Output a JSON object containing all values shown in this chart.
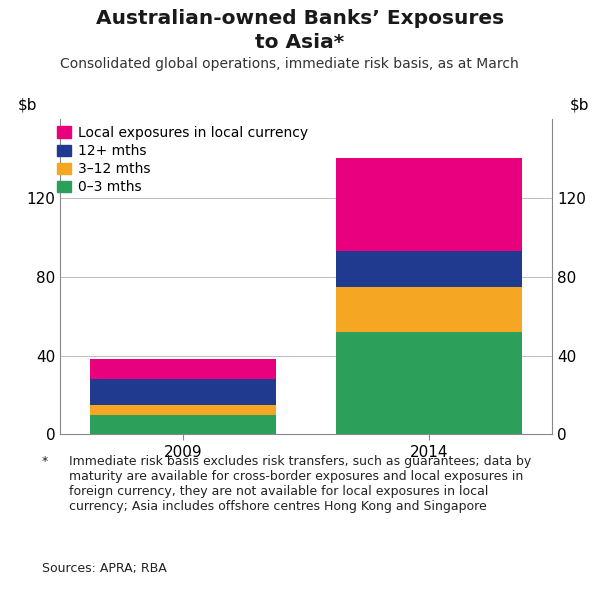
{
  "title_line1": "Australian-owned Banks’ Exposures",
  "title_line2": "to Asia*",
  "subtitle": "Consolidated global operations, immediate risk basis, as at March",
  "categories": [
    "2009",
    "2014"
  ],
  "series": {
    "0-3 mths": [
      10,
      52
    ],
    "3-12 mths": [
      5,
      23
    ],
    "12+ mths": [
      13,
      18
    ],
    "Local exposures in local currency": [
      10,
      47
    ]
  },
  "colors": {
    "0-3 mths": "#2ca05a",
    "3-12 mths": "#f5a623",
    "12+ mths": "#1f3a8f",
    "Local exposures in local currency": "#e8007f"
  },
  "legend_order": [
    "Local exposures in local currency",
    "12+ mths",
    "3-12 mths",
    "0-3 mths"
  ],
  "legend_labels": [
    "Local exposures in local currency",
    "12+ mths",
    "3–12 mths",
    "0–3 mths"
  ],
  "ylim": [
    0,
    160
  ],
  "yticks": [
    0,
    40,
    80,
    120
  ],
  "bar_width": 0.38,
  "bar_positions": [
    0.25,
    0.75
  ],
  "xlim": [
    0.0,
    1.0
  ],
  "footnote_star": "Immediate risk basis excludes risk transfers, such as guarantees; data by\nmaturity are available for cross-border exposures and local exposures in\nforeign currency, they are not available for local exposures in local\ncurrency; Asia includes offshore centres Hong Kong and Singapore",
  "sources": "Sources: APRA; RBA",
  "background_color": "#ffffff",
  "grid_color": "#bbbbbb",
  "title_fontsize": 14.5,
  "subtitle_fontsize": 10,
  "tick_fontsize": 11,
  "legend_fontsize": 10,
  "footnote_fontsize": 9
}
